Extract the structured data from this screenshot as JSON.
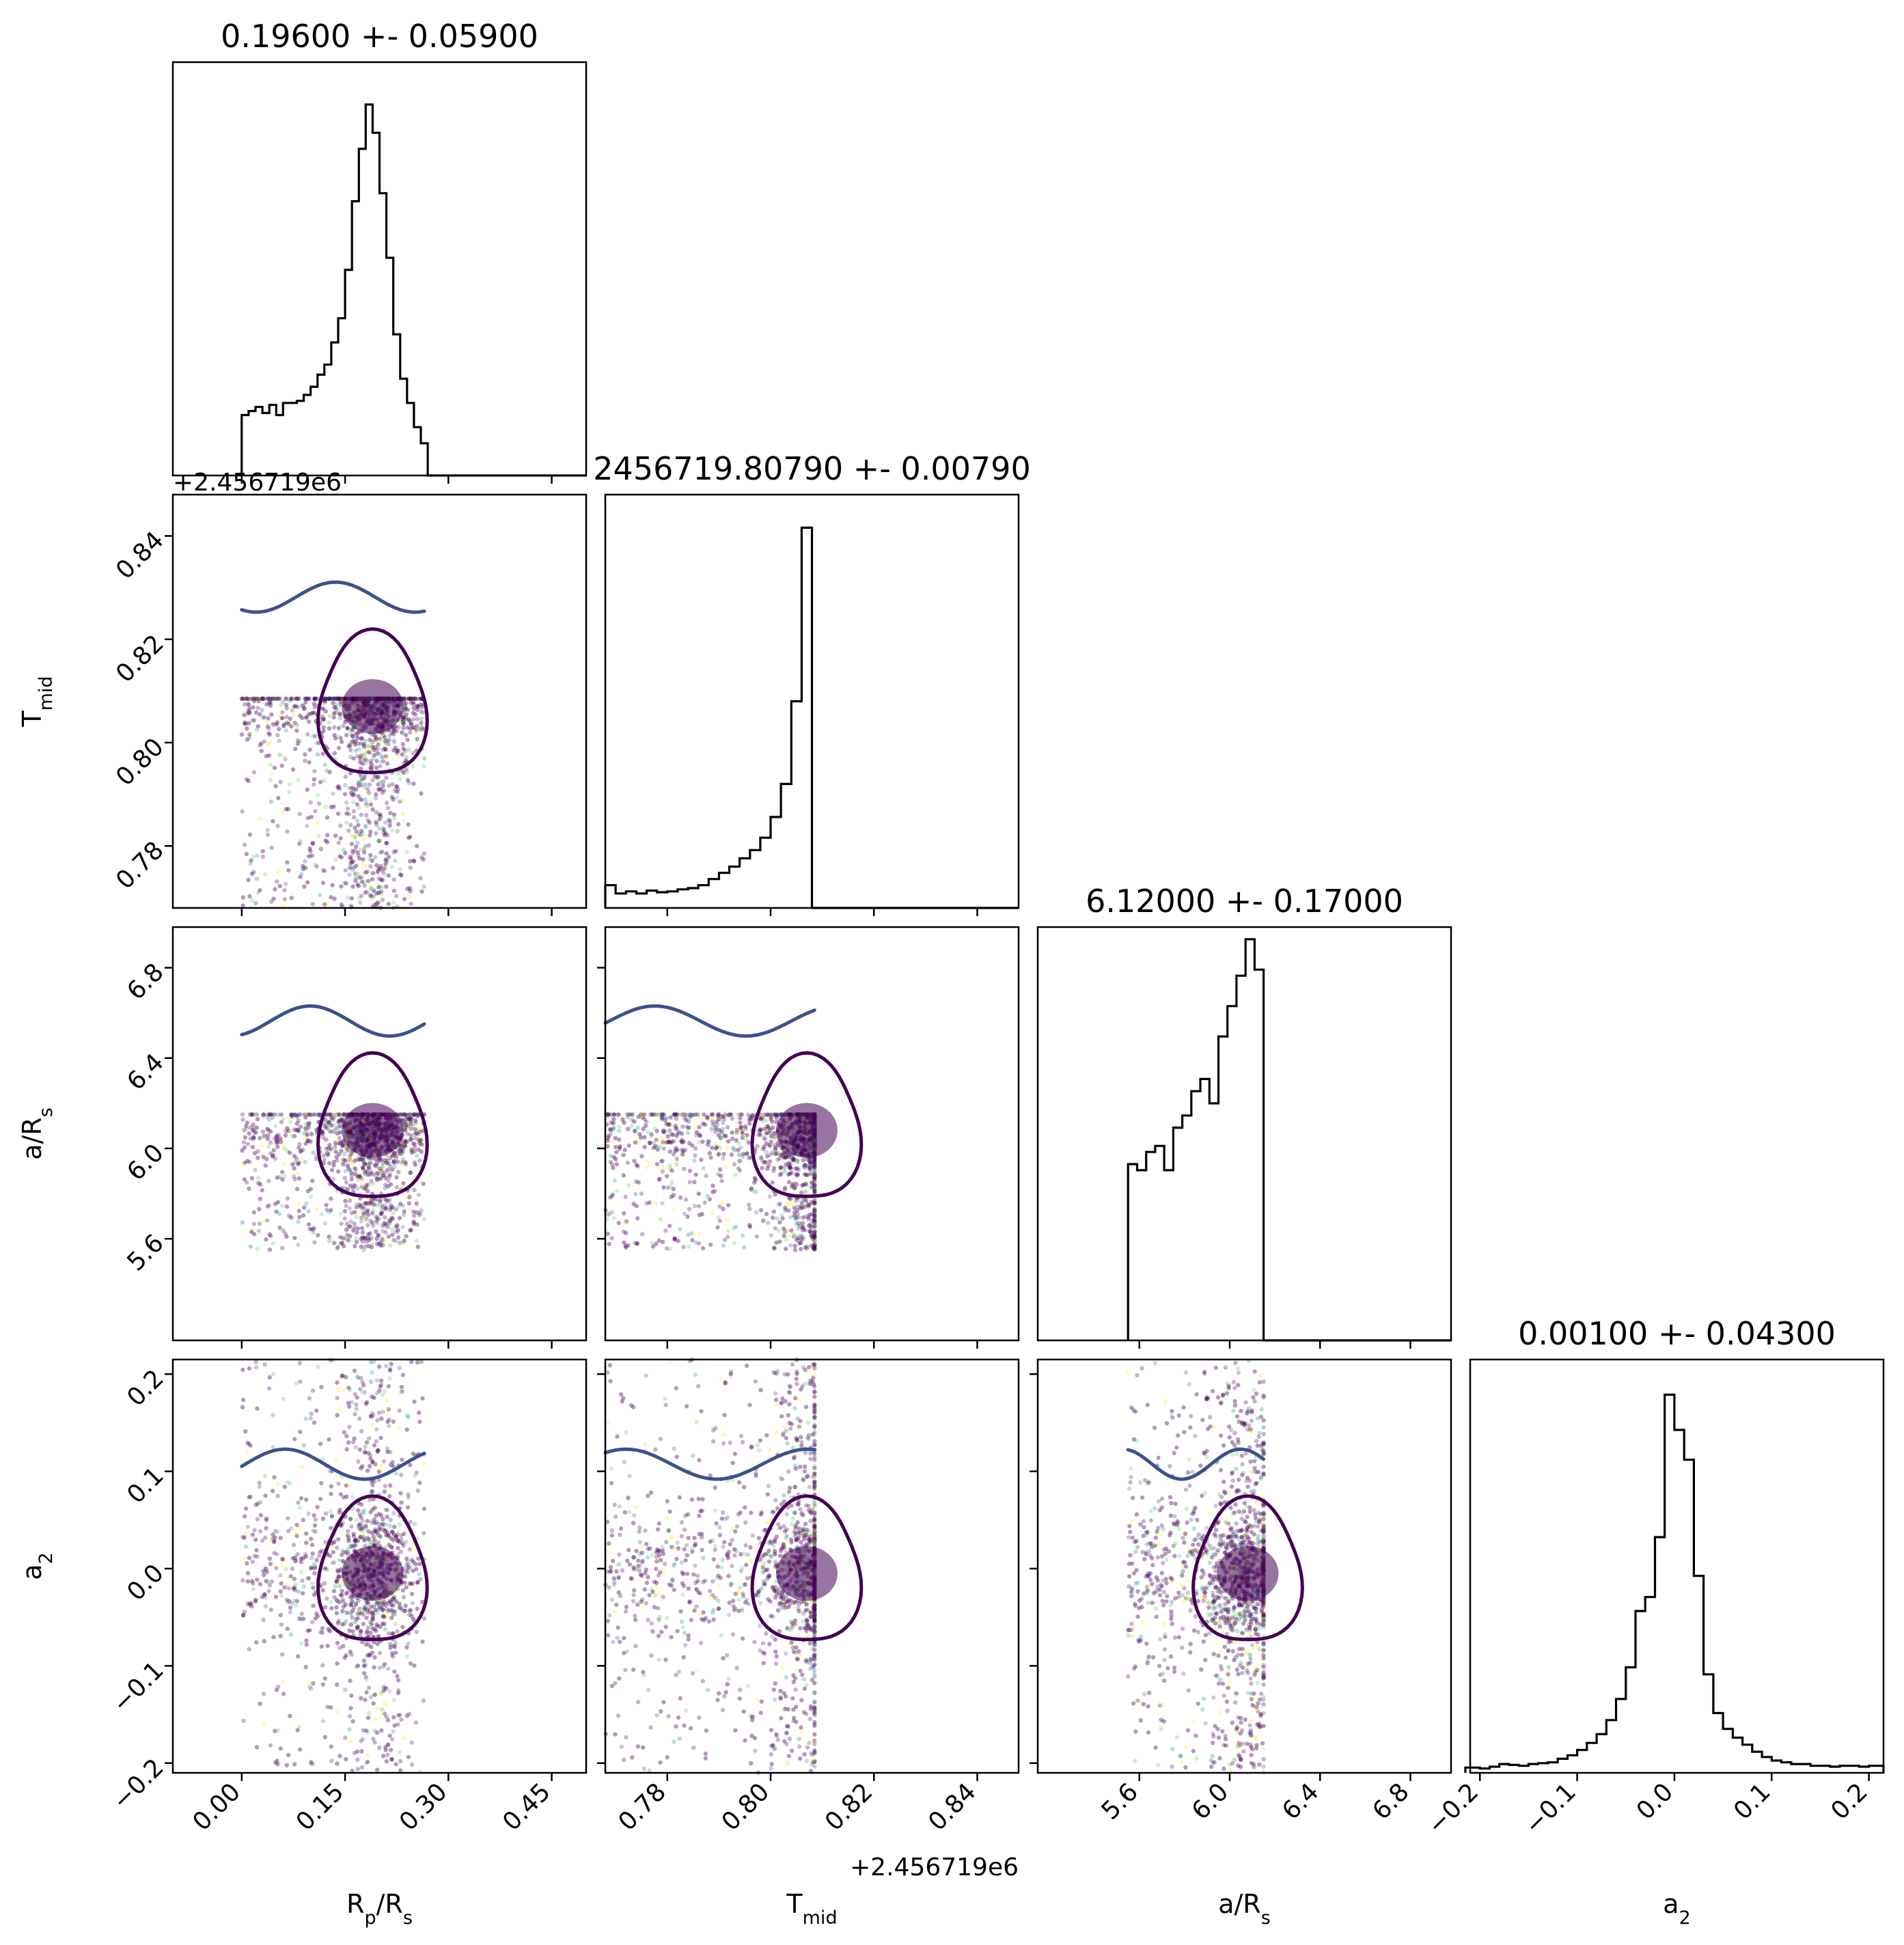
{
  "chart_data": {
    "type": "corner",
    "parameters": [
      {
        "key": "rp",
        "label": "R_p/R_s",
        "label_main": "R",
        "label_sub": "p",
        "label_rest": "/R",
        "label_sub2": "s"
      },
      {
        "key": "tmid",
        "label": "T_mid",
        "label_main": "T",
        "label_sub": "mid",
        "label_rest": "",
        "label_sub2": ""
      },
      {
        "key": "ars",
        "label": "a/R_s",
        "label_main": "a/R",
        "label_sub": "s",
        "label_rest": "",
        "label_sub2": ""
      },
      {
        "key": "a2",
        "label": "a_2",
        "label_main": "a",
        "label_sub": "2",
        "label_rest": "",
        "label_sub2": ""
      }
    ],
    "titles": [
      "0.19600 +- 0.05900",
      "2456719.80790 +- 0.00790",
      "6.12000 +- 0.17000",
      "0.00100 +- 0.04300"
    ],
    "offset_text": "+2.456719e6",
    "ranges": [
      [
        -0.1,
        0.5
      ],
      [
        0.768,
        0.848
      ],
      [
        5.15,
        6.98
      ],
      [
        -0.21,
        0.215
      ]
    ],
    "ticks": [
      {
        "values": [
          0.0,
          0.15,
          0.3,
          0.45
        ],
        "labels": [
          "0.00",
          "0.15",
          "0.30",
          "0.45"
        ]
      },
      {
        "values": [
          0.78,
          0.8,
          0.82,
          0.84
        ],
        "labels": [
          "0.78",
          "0.80",
          "0.82",
          "0.84"
        ]
      },
      {
        "values": [
          5.6,
          6.0,
          6.4,
          6.8
        ],
        "labels": [
          "5.6",
          "6.0",
          "6.4",
          "6.8"
        ]
      },
      {
        "values": [
          -0.2,
          -0.1,
          0.0,
          0.1,
          0.2
        ],
        "labels": [
          "−0.2",
          "−0.1",
          "0.0",
          "0.1",
          "0.2"
        ]
      }
    ],
    "histograms": [
      {
        "edges": [
          0.0,
          0.01,
          0.02,
          0.03,
          0.04,
          0.05,
          0.06,
          0.07,
          0.08,
          0.09,
          0.1,
          0.11,
          0.12,
          0.13,
          0.14,
          0.15,
          0.16,
          0.17,
          0.18,
          0.19,
          0.2,
          0.21,
          0.22,
          0.23,
          0.24,
          0.25,
          0.26,
          0.27
        ],
        "counts": [
          0.3,
          0.32,
          0.34,
          0.31,
          0.35,
          0.3,
          0.36,
          0.36,
          0.37,
          0.4,
          0.44,
          0.5,
          0.55,
          0.66,
          0.78,
          1.02,
          1.36,
          1.62,
          1.84,
          1.7,
          1.4,
          1.08,
          0.7,
          0.48,
          0.36,
          0.24,
          0.16
        ]
      },
      {
        "edges": [
          0.768,
          0.77,
          0.772,
          0.774,
          0.776,
          0.778,
          0.78,
          0.782,
          0.784,
          0.786,
          0.788,
          0.79,
          0.792,
          0.794,
          0.796,
          0.798,
          0.8,
          0.802,
          0.804,
          0.806,
          0.808
        ],
        "counts": [
          0.055,
          0.035,
          0.04,
          0.035,
          0.042,
          0.038,
          0.04,
          0.045,
          0.048,
          0.055,
          0.07,
          0.085,
          0.1,
          0.12,
          0.14,
          0.17,
          0.22,
          0.3,
          0.5,
          0.92
        ]
      },
      {
        "edges": [
          5.55,
          5.59,
          5.63,
          5.67,
          5.71,
          5.75,
          5.79,
          5.83,
          5.87,
          5.91,
          5.95,
          5.99,
          6.03,
          6.07,
          6.11,
          6.15
        ],
        "counts": [
          0.29,
          0.28,
          0.31,
          0.32,
          0.28,
          0.35,
          0.37,
          0.41,
          0.43,
          0.39,
          0.5,
          0.55,
          0.6,
          0.66,
          0.61
        ]
      },
      {
        "edges": [
          -0.215,
          -0.2,
          -0.19,
          -0.18,
          -0.17,
          -0.16,
          -0.15,
          -0.14,
          -0.13,
          -0.12,
          -0.11,
          -0.1,
          -0.09,
          -0.08,
          -0.07,
          -0.06,
          -0.05,
          -0.04,
          -0.03,
          -0.02,
          -0.01,
          0.0,
          0.01,
          0.02,
          0.03,
          0.04,
          0.05,
          0.06,
          0.07,
          0.08,
          0.09,
          0.1,
          0.11,
          0.12,
          0.13,
          0.14,
          0.15,
          0.16,
          0.17,
          0.18,
          0.19,
          0.2,
          0.215
        ],
        "counts": [
          0.03,
          0.025,
          0.035,
          0.05,
          0.045,
          0.04,
          0.05,
          0.055,
          0.06,
          0.08,
          0.1,
          0.13,
          0.17,
          0.22,
          0.3,
          0.42,
          0.6,
          0.92,
          1.0,
          1.34,
          2.15,
          1.95,
          1.78,
          1.12,
          0.56,
          0.34,
          0.25,
          0.2,
          0.16,
          0.12,
          0.09,
          0.07,
          0.06,
          0.05,
          0.05,
          0.04,
          0.04,
          0.035,
          0.04,
          0.04,
          0.035,
          0.04
        ]
      }
    ],
    "hist_ylim": [
      0,
      2.05,
      1.0,
      0.68,
      2.35
    ],
    "samples": {
      "rp": {
        "low": 0.0,
        "high": 0.265,
        "mode": 0.19
      },
      "tmid": {
        "low": 0.768,
        "high": 0.8085,
        "mode": 0.807
      },
      "ars": {
        "low": 5.55,
        "high": 6.15,
        "mode": 6.08
      },
      "a2": {
        "low": -0.215,
        "high": 0.215,
        "mode": -0.005
      }
    },
    "colors": {
      "dark": "#440154",
      "mid": "#3b528b",
      "teal": "#21918c",
      "green": "#5ec962",
      "yellow": "#fde725"
    },
    "grid": false
  }
}
